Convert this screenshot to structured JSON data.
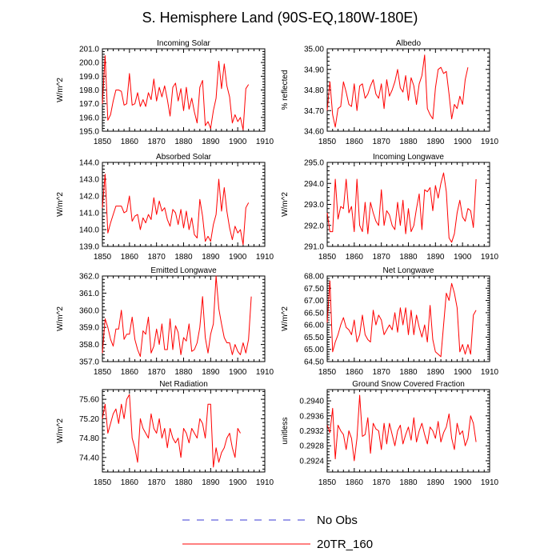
{
  "figure": {
    "title": "S. Hemisphere Land (90S-EQ,180W-180E)",
    "legend": [
      {
        "label": "No Obs",
        "color": "#3b3bd6",
        "style": "dashed"
      },
      {
        "label": "20TR_160",
        "color": "#ff0000",
        "style": "solid"
      }
    ]
  },
  "chart_data": [
    {
      "type": "line",
      "title": "Incoming Solar",
      "ylabel": "W/m^2",
      "xlim": [
        1850,
        1910
      ],
      "xticks": [
        1850,
        1860,
        1870,
        1880,
        1890,
        1900,
        1910
      ],
      "ylim": [
        195.0,
        201.0
      ],
      "yticks": [
        "201.0",
        "200.0",
        "199.0",
        "198.0",
        "197.0",
        "196.0",
        "195.0"
      ],
      "series_name": "20TR_160",
      "x_start": 1850,
      "values": [
        197.0,
        200.5,
        195.8,
        196.2,
        197.2,
        198.0,
        198.0,
        197.9,
        196.9,
        197.0,
        199.2,
        196.9,
        197.0,
        197.8,
        196.8,
        197.3,
        196.8,
        197.8,
        197.3,
        198.8,
        197.2,
        198.2,
        197.5,
        198.3,
        197.3,
        196.1,
        198.2,
        198.5,
        197.2,
        198.1,
        196.5,
        198.2,
        196.6,
        197.4,
        196.4,
        195.6,
        198.2,
        198.7,
        195.4,
        195.7,
        195.2,
        196.5,
        197.4,
        200.1,
        198.1,
        199.9,
        198.3,
        197.5,
        195.6,
        196.2,
        195.7,
        196.0,
        195.1,
        198.1,
        198.4
      ]
    },
    {
      "type": "line",
      "title": "Albedo",
      "ylabel": "% reflected",
      "xlim": [
        1850,
        1910
      ],
      "xticks": [
        1850,
        1860,
        1870,
        1880,
        1890,
        1900,
        1910
      ],
      "ylim": [
        34.6,
        35.0
      ],
      "yticks": [
        "35.00",
        "34.90",
        "34.80",
        "34.70",
        "34.60"
      ],
      "series_name": "20TR_160",
      "x_start": 1850,
      "values": [
        34.7,
        34.84,
        34.68,
        34.62,
        34.71,
        34.72,
        34.84,
        34.79,
        34.73,
        34.72,
        34.83,
        34.7,
        34.82,
        34.83,
        34.76,
        34.78,
        34.82,
        34.85,
        34.78,
        34.76,
        34.83,
        34.71,
        34.85,
        34.77,
        34.8,
        34.84,
        34.9,
        34.81,
        34.79,
        34.87,
        34.75,
        34.86,
        34.82,
        34.73,
        34.83,
        34.87,
        34.97,
        34.71,
        34.68,
        34.66,
        34.81,
        34.9,
        34.91,
        34.88,
        34.89,
        34.78,
        34.66,
        34.73,
        34.71,
        34.77,
        34.73,
        34.85,
        34.91
      ]
    },
    {
      "type": "line",
      "title": "Absorbed Solar",
      "ylabel": "W/m^2",
      "xlim": [
        1850,
        1910
      ],
      "xticks": [
        1850,
        1860,
        1870,
        1880,
        1890,
        1900,
        1910
      ],
      "ylim": [
        139.0,
        144.0
      ],
      "yticks": [
        "144.0",
        "143.0",
        "142.0",
        "141.0",
        "140.0",
        "139.0"
      ],
      "series_name": "20TR_160",
      "x_start": 1850,
      "values": [
        141.3,
        143.3,
        139.8,
        140.4,
        140.9,
        141.4,
        141.4,
        141.4,
        141.0,
        141.1,
        142.0,
        140.5,
        140.8,
        140.9,
        140.0,
        140.7,
        140.4,
        140.9,
        140.6,
        141.9,
        140.9,
        141.7,
        141.1,
        141.3,
        140.6,
        140.2,
        141.2,
        141.0,
        140.3,
        141.2,
        140.1,
        141.1,
        140.0,
        140.7,
        139.7,
        139.5,
        141.8,
        140.8,
        139.3,
        139.6,
        139.3,
        140.3,
        140.9,
        143.0,
        141.1,
        142.5,
        141.1,
        140.1,
        139.4,
        140.2,
        139.8,
        140.0,
        139.1,
        141.3,
        141.6
      ]
    },
    {
      "type": "line",
      "title": "Incoming Longwave",
      "ylabel": "W/m^2",
      "xlim": [
        1850,
        1910
      ],
      "xticks": [
        1850,
        1860,
        1870,
        1880,
        1890,
        1900,
        1910
      ],
      "ylim": [
        291.0,
        295.0
      ],
      "yticks": [
        "295.0",
        "294.0",
        "293.0",
        "292.0",
        "291.0"
      ],
      "series_name": "20TR_160",
      "x_start": 1850,
      "values": [
        292.6,
        291.7,
        291.7,
        294.2,
        292.3,
        292.9,
        292.8,
        294.2,
        292.6,
        292.9,
        291.7,
        294.2,
        292.0,
        291.7,
        293.1,
        291.6,
        293.1,
        292.6,
        292.2,
        292.0,
        293.7,
        292.0,
        292.7,
        292.5,
        292.0,
        291.8,
        293.1,
        292.0,
        293.2,
        291.6,
        292.8,
        291.7,
        292.0,
        292.8,
        293.5,
        291.8,
        293.7,
        293.6,
        293.8,
        292.7,
        293.9,
        293.3,
        294.0,
        294.5,
        293.6,
        291.4,
        291.2,
        291.6,
        292.6,
        293.2,
        292.4,
        292.2,
        292.8,
        292.7,
        291.9,
        294.2
      ]
    },
    {
      "type": "line",
      "title": "Emitted Longwave",
      "ylabel": "W/m^2",
      "xlim": [
        1850,
        1910
      ],
      "xticks": [
        1850,
        1860,
        1870,
        1880,
        1890,
        1900,
        1910
      ],
      "ylim": [
        357.0,
        362.0
      ],
      "yticks": [
        "362.0",
        "361.0",
        "360.0",
        "359.0",
        "358.0",
        "357.0"
      ],
      "series_name": "20TR_160",
      "x_start": 1850,
      "values": [
        357.5,
        359.5,
        359.0,
        358.3,
        357.9,
        358.9,
        358.9,
        360.0,
        358.3,
        358.6,
        358.6,
        359.6,
        358.3,
        357.7,
        357.3,
        358.8,
        358.6,
        359.6,
        357.5,
        357.9,
        358.9,
        358.0,
        359.2,
        357.7,
        357.7,
        359.5,
        357.7,
        359.1,
        358.7,
        357.4,
        358.4,
        358.2,
        359.2,
        357.6,
        357.7,
        358.1,
        359.0,
        360.8,
        358.4,
        357.5,
        358.6,
        359.2,
        362.0,
        360.1,
        359.2,
        358.4,
        358.1,
        358.1,
        357.4,
        358.0,
        357.6,
        357.4,
        358.1,
        357.5,
        358.3,
        360.8
      ]
    },
    {
      "type": "line",
      "title": "Net Longwave",
      "ylabel": "W/m^2",
      "xlim": [
        1850,
        1910
      ],
      "xticks": [
        1850,
        1860,
        1870,
        1880,
        1890,
        1900,
        1910
      ],
      "ylim": [
        64.5,
        68.0
      ],
      "yticks": [
        "68.00",
        "67.50",
        "67.00",
        "66.50",
        "66.00",
        "65.50",
        "65.00",
        "64.50"
      ],
      "series_name": "20TR_160",
      "x_start": 1850,
      "values": [
        66.1,
        67.8,
        64.9,
        65.3,
        65.6,
        66.0,
        66.3,
        65.9,
        65.8,
        65.6,
        66.2,
        65.3,
        65.6,
        66.4,
        65.6,
        65.4,
        65.3,
        66.6,
        66.0,
        66.4,
        66.2,
        65.6,
        65.8,
        66.0,
        65.8,
        66.5,
        65.7,
        66.7,
        66.0,
        66.7,
        65.6,
        66.6,
        65.6,
        66.4,
        65.9,
        65.5,
        66.0,
        65.3,
        66.8,
        65.4,
        64.9,
        64.8,
        64.7,
        66.0,
        67.3,
        67.0,
        67.7,
        67.3,
        66.7,
        64.9,
        65.2,
        64.8,
        65.2,
        64.8,
        66.4,
        66.6
      ]
    },
    {
      "type": "line",
      "title": "Net Radiation",
      "ylabel": "W/m^2",
      "xlim": [
        1850,
        1910
      ],
      "xticks": [
        1850,
        1860,
        1870,
        1880,
        1890,
        1900,
        1910
      ],
      "ylim": [
        74.1,
        75.8
      ],
      "yticks": [
        "75.60",
        "75.20",
        "74.80",
        "74.40"
      ],
      "series_name": "20TR_160",
      "x_start": 1850,
      "values": [
        75.2,
        75.5,
        74.9,
        75.1,
        75.3,
        75.4,
        75.1,
        75.5,
        75.2,
        75.6,
        75.7,
        74.8,
        74.6,
        74.3,
        75.2,
        75.0,
        74.9,
        74.8,
        75.3,
        75.0,
        74.9,
        75.2,
        74.8,
        75.0,
        74.6,
        75.0,
        74.8,
        74.7,
        74.8,
        74.4,
        75.0,
        74.9,
        74.7,
        75.0,
        74.9,
        74.8,
        75.2,
        75.1,
        74.8,
        75.5,
        75.5,
        74.2,
        74.6,
        74.3,
        74.5,
        74.6,
        74.8,
        74.9,
        74.6,
        74.4,
        75.0,
        74.9
      ]
    },
    {
      "type": "line",
      "title": "Ground Snow Covered Fraction",
      "ylabel": "unitless",
      "xlim": [
        1850,
        1910
      ],
      "xticks": [
        1850,
        1860,
        1870,
        1880,
        1890,
        1900,
        1910
      ],
      "ylim": [
        0.2921,
        0.2943
      ],
      "yticks": [
        "0.2940",
        "0.2936",
        "0.2932",
        "0.2928",
        "0.2924"
      ],
      "series_name": "20TR_160",
      "x_start": 1850,
      "values": [
        0.29335,
        0.29315,
        0.2938,
        0.29245,
        0.29335,
        0.2932,
        0.2931,
        0.2927,
        0.2932,
        0.293,
        0.2924,
        0.293,
        0.29415,
        0.29305,
        0.2931,
        0.29355,
        0.2926,
        0.2934,
        0.29325,
        0.2932,
        0.2927,
        0.2934,
        0.29285,
        0.2934,
        0.2931,
        0.2928,
        0.2932,
        0.29335,
        0.29285,
        0.2931,
        0.2933,
        0.29295,
        0.29355,
        0.2929,
        0.2932,
        0.2934,
        0.2931,
        0.29285,
        0.2933,
        0.2932,
        0.293,
        0.29345,
        0.2929,
        0.29315,
        0.2933,
        0.29365,
        0.293,
        0.2927,
        0.2934,
        0.2931,
        0.2932,
        0.2928,
        0.293,
        0.2936,
        0.2934,
        0.2929
      ]
    }
  ]
}
